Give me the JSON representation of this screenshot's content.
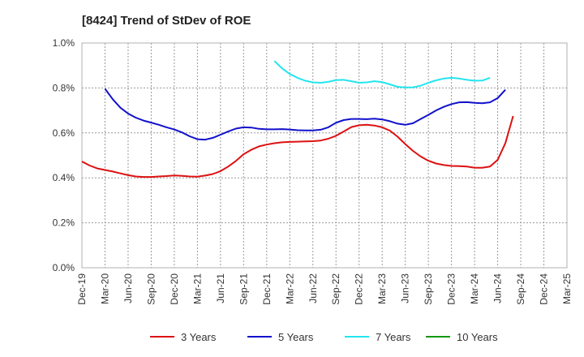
{
  "chart_data": {
    "type": "line",
    "title": "[8424]  Trend of StDev of ROE",
    "xlabel": "",
    "ylabel": "",
    "x_ticks": [
      "Dec-19",
      "Mar-20",
      "Jun-20",
      "Sep-20",
      "Dec-20",
      "Mar-21",
      "Jun-21",
      "Sep-21",
      "Dec-21",
      "Mar-22",
      "Jun-22",
      "Sep-22",
      "Dec-22",
      "Mar-23",
      "Jun-23",
      "Sep-23",
      "Dec-23",
      "Mar-24",
      "Jun-24",
      "Sep-24",
      "Dec-24",
      "Mar-25"
    ],
    "y_ticks": [
      "0.0%",
      "0.2%",
      "0.4%",
      "0.6%",
      "0.8%",
      "1.0%"
    ],
    "ylim": [
      0,
      1.0
    ],
    "grid": true,
    "legend_position": "bottom",
    "series": [
      {
        "name": "3 Years",
        "color": "#dd1111",
        "start_index": 0,
        "values": [
          0.473,
          0.455,
          0.442,
          0.435,
          0.428,
          0.42,
          0.412,
          0.406,
          0.404,
          0.404,
          0.406,
          0.408,
          0.411,
          0.409,
          0.406,
          0.405,
          0.41,
          0.417,
          0.43,
          0.45,
          0.475,
          0.505,
          0.525,
          0.54,
          0.548,
          0.554,
          0.558,
          0.56,
          0.561,
          0.562,
          0.563,
          0.566,
          0.574,
          0.587,
          0.606,
          0.626,
          0.634,
          0.636,
          0.633,
          0.625,
          0.61,
          0.583,
          0.55,
          0.52,
          0.495,
          0.476,
          0.464,
          0.457,
          0.453,
          0.452,
          0.45,
          0.445,
          0.445,
          0.45,
          0.48,
          0.555,
          0.675
        ]
      },
      {
        "name": "5 Years",
        "color": "#1111cc",
        "start_index": 3,
        "values": [
          0.796,
          0.75,
          0.712,
          0.686,
          0.668,
          0.655,
          0.646,
          0.636,
          0.625,
          0.615,
          0.602,
          0.585,
          0.572,
          0.57,
          0.578,
          0.592,
          0.606,
          0.619,
          0.625,
          0.624,
          0.618,
          0.616,
          0.616,
          0.617,
          0.615,
          0.612,
          0.611,
          0.611,
          0.614,
          0.625,
          0.645,
          0.657,
          0.662,
          0.662,
          0.661,
          0.663,
          0.66,
          0.652,
          0.641,
          0.636,
          0.643,
          0.662,
          0.68,
          0.7,
          0.716,
          0.728,
          0.736,
          0.737,
          0.734,
          0.732,
          0.736,
          0.755,
          0.792
        ]
      },
      {
        "name": "7 Years",
        "color": "#22e5ee",
        "start_index": 25,
        "values": [
          0.92,
          0.887,
          0.862,
          0.845,
          0.832,
          0.825,
          0.823,
          0.827,
          0.835,
          0.836,
          0.83,
          0.823,
          0.825,
          0.83,
          0.826,
          0.816,
          0.805,
          0.802,
          0.803,
          0.81,
          0.823,
          0.834,
          0.842,
          0.845,
          0.842,
          0.836,
          0.832,
          0.833,
          0.845
        ]
      },
      {
        "name": "10 Years",
        "color": "#119911",
        "start_index": 0,
        "values": []
      }
    ]
  }
}
